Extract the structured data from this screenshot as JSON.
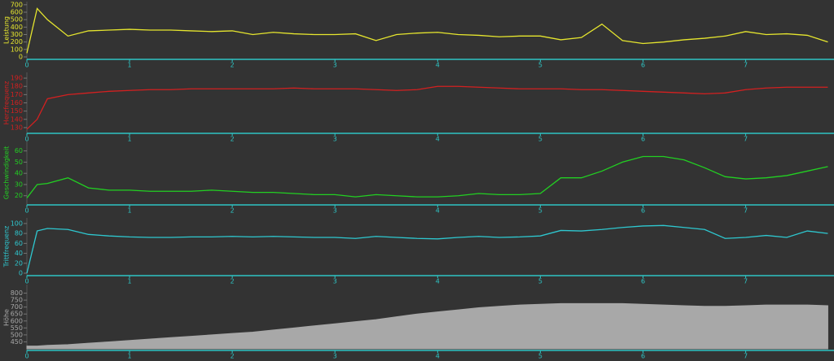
{
  "chart_data": [
    {
      "type": "line",
      "ylabel": "Leistung",
      "color": "#e6e62e",
      "x": [
        0,
        0.1,
        0.2,
        0.4,
        0.6,
        0.8,
        1,
        1.2,
        1.4,
        1.6,
        1.8,
        2,
        2.2,
        2.4,
        2.6,
        2.8,
        3,
        3.2,
        3.4,
        3.6,
        3.8,
        4,
        4.2,
        4.4,
        4.6,
        4.8,
        5,
        5.2,
        5.4,
        5.6,
        5.8,
        6,
        6.2,
        6.4,
        6.6,
        6.8,
        7,
        7.2,
        7.4,
        7.6,
        7.8
      ],
      "values": [
        50,
        650,
        500,
        280,
        350,
        360,
        370,
        360,
        360,
        350,
        340,
        350,
        300,
        330,
        310,
        300,
        300,
        310,
        220,
        300,
        320,
        330,
        300,
        290,
        270,
        280,
        280,
        230,
        260,
        440,
        220,
        180,
        200,
        230,
        250,
        280,
        340,
        300,
        310,
        290,
        200
      ],
      "xlim": [
        0,
        7.86
      ],
      "ylim": [
        0,
        720
      ],
      "xticks": [
        0,
        1,
        2,
        3,
        4,
        5,
        6,
        7
      ],
      "yticks": [
        0,
        100,
        200,
        300,
        400,
        500,
        600,
        700
      ]
    },
    {
      "type": "line",
      "ylabel": "Herzfrequenz",
      "color": "#d42020",
      "x": [
        0,
        0.1,
        0.2,
        0.4,
        0.6,
        0.8,
        1,
        1.2,
        1.4,
        1.6,
        1.8,
        2,
        2.2,
        2.4,
        2.6,
        2.8,
        3,
        3.2,
        3.4,
        3.6,
        3.8,
        4,
        4.2,
        4.4,
        4.6,
        4.8,
        5,
        5.2,
        5.4,
        5.6,
        5.8,
        6,
        6.2,
        6.4,
        6.6,
        6.8,
        7,
        7.2,
        7.4,
        7.6,
        7.8
      ],
      "values": [
        128,
        140,
        165,
        170,
        172,
        174,
        175,
        176,
        176,
        177,
        177,
        177,
        177,
        177,
        178,
        177,
        177,
        177,
        176,
        175,
        176,
        180,
        180,
        179,
        178,
        177,
        177,
        177,
        176,
        176,
        175,
        174,
        173,
        172,
        171,
        172,
        176,
        178,
        179,
        179,
        179
      ],
      "xlim": [
        0,
        7.86
      ],
      "ylim": [
        125,
        195
      ],
      "xticks": [
        0,
        1,
        2,
        3,
        4,
        5,
        6,
        7
      ],
      "yticks": [
        130,
        140,
        150,
        160,
        170,
        180,
        190
      ]
    },
    {
      "type": "line",
      "ylabel": "Geschwindigkeit",
      "color": "#22d022",
      "x": [
        0,
        0.1,
        0.2,
        0.4,
        0.6,
        0.8,
        1,
        1.2,
        1.4,
        1.6,
        1.8,
        2,
        2.2,
        2.4,
        2.6,
        2.8,
        3,
        3.2,
        3.4,
        3.6,
        3.8,
        4,
        4.2,
        4.4,
        4.6,
        4.8,
        5,
        5.2,
        5.4,
        5.6,
        5.8,
        6,
        6.2,
        6.4,
        6.6,
        6.8,
        7,
        7.2,
        7.4,
        7.6,
        7.8
      ],
      "values": [
        18,
        30,
        31,
        36,
        27,
        25,
        25,
        24,
        24,
        24,
        25,
        24,
        23,
        23,
        22,
        21,
        21,
        19,
        21,
        20,
        19,
        19,
        20,
        22,
        21,
        21,
        22,
        36,
        36,
        42,
        50,
        55,
        55,
        52,
        45,
        37,
        35,
        36,
        38,
        42,
        46
      ],
      "xlim": [
        0,
        7.86
      ],
      "ylim": [
        14,
        67
      ],
      "xticks": [
        0,
        1,
        2,
        3,
        4,
        5,
        6,
        7
      ],
      "yticks": [
        20,
        30,
        40,
        50,
        60
      ]
    },
    {
      "type": "line",
      "ylabel": "Trittfrequenz",
      "color": "#2ec8d0",
      "x": [
        0,
        0.1,
        0.2,
        0.4,
        0.6,
        0.8,
        1,
        1.2,
        1.4,
        1.6,
        1.8,
        2,
        2.2,
        2.4,
        2.6,
        2.8,
        3,
        3.2,
        3.4,
        3.6,
        3.8,
        4,
        4.2,
        4.4,
        4.6,
        4.8,
        5,
        5.2,
        5.4,
        5.6,
        5.8,
        6,
        6.2,
        6.4,
        6.6,
        6.8,
        7,
        7.2,
        7.4,
        7.6,
        7.8
      ],
      "values": [
        0,
        85,
        90,
        88,
        78,
        75,
        73,
        72,
        72,
        73,
        73,
        74,
        73,
        74,
        73,
        72,
        72,
        70,
        74,
        72,
        70,
        69,
        72,
        74,
        72,
        73,
        75,
        86,
        85,
        88,
        92,
        95,
        96,
        92,
        88,
        70,
        72,
        76,
        72,
        85,
        80
      ],
      "xlim": [
        0,
        7.86
      ],
      "ylim": [
        0,
        108
      ],
      "xticks": [
        0,
        1,
        2,
        3,
        4,
        5,
        6,
        7
      ],
      "yticks": [
        0,
        20,
        40,
        60,
        80,
        100
      ]
    },
    {
      "type": "area",
      "ylabel": "Höhe",
      "color": "#a8a8a8",
      "x": [
        0,
        0.1,
        0.2,
        0.4,
        0.6,
        0.8,
        1,
        1.2,
        1.4,
        1.6,
        1.8,
        2,
        2.2,
        2.4,
        2.6,
        2.8,
        3,
        3.2,
        3.4,
        3.6,
        3.8,
        4,
        4.2,
        4.4,
        4.6,
        4.8,
        5,
        5.2,
        5.4,
        5.6,
        5.8,
        6,
        6.2,
        6.4,
        6.6,
        6.8,
        7,
        7.2,
        7.4,
        7.6,
        7.8
      ],
      "values": [
        420,
        420,
        425,
        430,
        440,
        450,
        460,
        470,
        480,
        490,
        500,
        510,
        520,
        535,
        550,
        565,
        580,
        595,
        610,
        630,
        650,
        665,
        680,
        695,
        705,
        715,
        720,
        725,
        725,
        725,
        725,
        720,
        715,
        710,
        705,
        705,
        710,
        715,
        715,
        715,
        710
      ],
      "xlim": [
        0,
        7.86
      ],
      "ylim": [
        400,
        850
      ],
      "xticks": [
        0,
        1,
        2,
        3,
        4,
        5,
        6,
        7
      ],
      "yticks": [
        450,
        500,
        550,
        600,
        650,
        700,
        750,
        800
      ]
    }
  ]
}
